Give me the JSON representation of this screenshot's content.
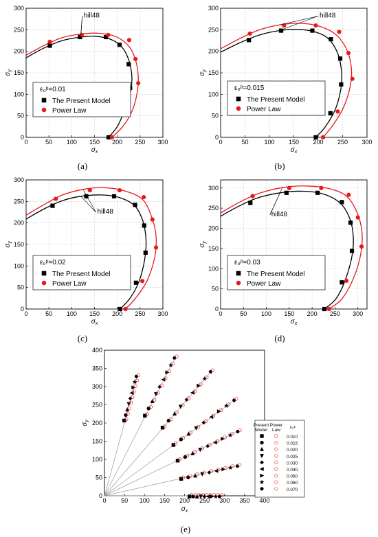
{
  "chart_data": [
    {
      "panel": "(a)",
      "type": "line",
      "xlabel": "σx",
      "ylabel": "σy",
      "xlim": [
        0,
        300
      ],
      "ylim": [
        0,
        300
      ],
      "xticks": [
        0,
        50,
        100,
        150,
        200,
        250,
        300
      ],
      "yticks": [
        0,
        50,
        100,
        150,
        200,
        250,
        300
      ],
      "grid": true,
      "legend_title": "ε₀ᵖ=0.01",
      "curve_label": "hill48",
      "series": [
        {
          "name": "The Present Model",
          "marker": "square",
          "color": "#000000",
          "points": [
            [
              52,
              213
            ],
            [
              118,
              233
            ],
            [
              175,
              233
            ],
            [
              205,
              215
            ],
            [
              225,
              170
            ],
            [
              228,
              115
            ],
            [
              212,
              53
            ],
            [
              181,
              0
            ]
          ]
        },
        {
          "name": "Power Law",
          "marker": "circle",
          "color": "#e8191c",
          "points": [
            [
              52,
              222
            ],
            [
              122,
              238
            ],
            [
              180,
              238
            ],
            [
              226,
              226
            ],
            [
              240,
              182
            ],
            [
              246,
              126
            ],
            [
              220,
              55
            ],
            [
              188,
              0
            ]
          ]
        }
      ],
      "curves": [
        {
          "color": "#000000",
          "points": [
            [
              0,
              185
            ],
            [
              40,
              208
            ],
            [
              80,
              225
            ],
            [
              120,
              233
            ],
            [
              150,
              235
            ],
            [
              185,
              228
            ],
            [
              210,
              210
            ],
            [
              225,
              180
            ],
            [
              232,
              140
            ],
            [
              228,
              100
            ],
            [
              215,
              60
            ],
            [
              200,
              25
            ],
            [
              181,
              0
            ]
          ]
        },
        {
          "color": "#e8191c",
          "points": [
            [
              0,
              191
            ],
            [
              40,
              214
            ],
            [
              80,
              232
            ],
            [
              120,
              240
            ],
            [
              155,
              242
            ],
            [
              195,
              235
            ],
            [
              225,
              212
            ],
            [
              240,
              180
            ],
            [
              246,
              140
            ],
            [
              243,
              100
            ],
            [
              232,
              60
            ],
            [
              212,
              25
            ],
            [
              188,
              0
            ]
          ]
        }
      ]
    },
    {
      "panel": "(b)",
      "type": "line",
      "xlabel": "σx",
      "ylabel": "σy",
      "xlim": [
        0,
        300
      ],
      "ylim": [
        0,
        300
      ],
      "xticks": [
        0,
        50,
        100,
        150,
        200,
        250,
        300
      ],
      "yticks": [
        0,
        50,
        100,
        150,
        200,
        250,
        300
      ],
      "grid": true,
      "legend_title": "ε₀ᵖ=0.015",
      "curve_label": "hill48",
      "series": [
        {
          "name": "The Present Model",
          "marker": "square",
          "color": "#000000",
          "points": [
            [
              58,
              226
            ],
            [
              124,
              248
            ],
            [
              188,
              248
            ],
            [
              226,
              228
            ],
            [
              245,
              183
            ],
            [
              247,
              123
            ],
            [
              225,
              56
            ],
            [
              195,
              0
            ]
          ]
        },
        {
          "name": "Power Law",
          "marker": "circle",
          "color": "#e8191c",
          "points": [
            [
              60,
              241
            ],
            [
              130,
              260
            ],
            [
              195,
              260
            ],
            [
              243,
              245
            ],
            [
              262,
              196
            ],
            [
              270,
              136
            ],
            [
              240,
              60
            ],
            [
              210,
              0
            ]
          ]
        }
      ],
      "curves": [
        {
          "color": "#000000",
          "points": [
            [
              0,
              198
            ],
            [
              40,
              220
            ],
            [
              80,
              238
            ],
            [
              120,
              248
            ],
            [
              155,
              251
            ],
            [
              190,
              246
            ],
            [
              220,
              230
            ],
            [
              240,
              195
            ],
            [
              248,
              150
            ],
            [
              246,
              110
            ],
            [
              235,
              65
            ],
            [
              215,
              25
            ],
            [
              195,
              0
            ]
          ]
        },
        {
          "color": "#e8191c",
          "points": [
            [
              0,
              206
            ],
            [
              40,
              230
            ],
            [
              80,
              250
            ],
            [
              120,
              261
            ],
            [
              160,
              265
            ],
            [
              200,
              259
            ],
            [
              235,
              240
            ],
            [
              258,
              205
            ],
            [
              268,
              160
            ],
            [
              265,
              115
            ],
            [
              250,
              65
            ],
            [
              228,
              25
            ],
            [
              210,
              0
            ]
          ]
        }
      ]
    },
    {
      "panel": "(c)",
      "type": "line",
      "xlabel": "σx",
      "ylabel": "σy",
      "xlim": [
        0,
        300
      ],
      "ylim": [
        0,
        300
      ],
      "xticks": [
        0,
        50,
        100,
        150,
        200,
        250,
        300
      ],
      "yticks": [
        0,
        50,
        100,
        150,
        200,
        250,
        300
      ],
      "grid": true,
      "legend_title": "ε₀ᵖ=0.02",
      "curve_label": "hill48",
      "series": [
        {
          "name": "The Present Model",
          "marker": "square",
          "color": "#000000",
          "points": [
            [
              58,
              240
            ],
            [
              132,
              262
            ],
            [
              193,
              262
            ],
            [
              239,
              242
            ],
            [
              259,
              194
            ],
            [
              262,
              131
            ],
            [
              241,
              61
            ],
            [
              206,
              0
            ]
          ]
        },
        {
          "name": "Power Law",
          "marker": "circle",
          "color": "#e8191c",
          "points": [
            [
              65,
              256
            ],
            [
              140,
              276
            ],
            [
              205,
              276
            ],
            [
              258,
              260
            ],
            [
              277,
              208
            ],
            [
              285,
              143
            ],
            [
              255,
              65
            ],
            [
              218,
              0
            ]
          ]
        }
      ],
      "curves": [
        {
          "color": "#000000",
          "points": [
            [
              0,
              209
            ],
            [
              40,
              233
            ],
            [
              80,
              252
            ],
            [
              120,
              262
            ],
            [
              165,
              265
            ],
            [
              205,
              259
            ],
            [
              238,
              240
            ],
            [
              256,
              205
            ],
            [
              263,
              160
            ],
            [
              260,
              115
            ],
            [
              248,
              65
            ],
            [
              228,
              25
            ],
            [
              206,
              0
            ]
          ]
        },
        {
          "color": "#e8191c",
          "points": [
            [
              0,
              218
            ],
            [
              40,
              243
            ],
            [
              80,
              265
            ],
            [
              125,
              278
            ],
            [
              170,
              282
            ],
            [
              215,
              275
            ],
            [
              255,
              255
            ],
            [
              275,
              215
            ],
            [
              285,
              170
            ],
            [
              282,
              120
            ],
            [
              265,
              65
            ],
            [
              240,
              25
            ],
            [
              218,
              0
            ]
          ]
        }
      ]
    },
    {
      "panel": "(d)",
      "type": "line",
      "xlabel": "σx",
      "ylabel": "σy",
      "xlim": [
        0,
        320
      ],
      "ylim": [
        0,
        320
      ],
      "xticks": [
        0,
        50,
        100,
        150,
        200,
        250,
        300
      ],
      "yticks": [
        0,
        50,
        100,
        150,
        200,
        250,
        300
      ],
      "grid": true,
      "legend_title": "ε₀ᵖ=0.03",
      "curve_label": "hill48",
      "series": [
        {
          "name": "The Present Model",
          "marker": "square",
          "color": "#000000",
          "points": [
            [
              65,
              263
            ],
            [
              144,
              288
            ],
            [
              212,
              288
            ],
            [
              265,
              265
            ],
            [
              284,
              214
            ],
            [
              287,
              144
            ],
            [
              265,
              66
            ],
            [
              227,
              0
            ]
          ]
        },
        {
          "name": "Power Law",
          "marker": "circle",
          "color": "#e8191c",
          "points": [
            [
              70,
              280
            ],
            [
              150,
              300
            ],
            [
              220,
              300
            ],
            [
              280,
              283
            ],
            [
              300,
              227
            ],
            [
              308,
              155
            ],
            [
              275,
              70
            ],
            [
              237,
              0
            ]
          ]
        }
      ],
      "curves": [
        {
          "color": "#000000",
          "points": [
            [
              0,
              230
            ],
            [
              40,
              255
            ],
            [
              80,
              275
            ],
            [
              130,
              288
            ],
            [
              180,
              292
            ],
            [
              225,
              285
            ],
            [
              262,
              262
            ],
            [
              282,
              225
            ],
            [
              290,
              180
            ],
            [
              287,
              130
            ],
            [
              272,
              70
            ],
            [
              252,
              25
            ],
            [
              227,
              0
            ]
          ]
        },
        {
          "color": "#e8191c",
          "points": [
            [
              0,
              238
            ],
            [
              40,
              264
            ],
            [
              85,
              287
            ],
            [
              135,
              301
            ],
            [
              185,
              305
            ],
            [
              235,
              299
            ],
            [
              275,
              280
            ],
            [
              298,
              240
            ],
            [
              309,
              190
            ],
            [
              306,
              135
            ],
            [
              290,
              75
            ],
            [
              265,
              25
            ],
            [
              237,
              0
            ]
          ]
        }
      ]
    },
    {
      "panel": "(e)",
      "type": "scatter",
      "xlabel": "σx",
      "ylabel": "σy",
      "xlim": [
        0,
        400
      ],
      "ylim": [
        0,
        400
      ],
      "xticks": [
        0,
        50,
        100,
        150,
        200,
        250,
        300,
        350,
        400
      ],
      "yticks": [
        0,
        50,
        100,
        150,
        200,
        250,
        300,
        350,
        400
      ],
      "grid": false,
      "legend_headers": [
        "Present Model",
        "Power Law",
        "ε₀ᵖ"
      ],
      "legend_levels": [
        "0.010",
        "0.015",
        "0.020",
        "0.025",
        "0.030",
        "0.040",
        "0.050",
        "0.060",
        "0.070"
      ],
      "present_marker_shapes": [
        "square",
        "circle",
        "triangle-up",
        "triangle-down",
        "diamond",
        "triangle-left",
        "triangle-right",
        "star",
        "hexagon"
      ],
      "rays": [
        {
          "angle_deg": 0,
          "start": 215,
          "end": 290
        },
        {
          "angle_deg": 14,
          "start": 200,
          "end": 345
        },
        {
          "angle_deg": 28,
          "start": 210,
          "end": 380
        },
        {
          "angle_deg": 39,
          "start": 225,
          "end": 420
        },
        {
          "angle_deg": 52,
          "start": 240,
          "end": 435
        },
        {
          "angle_deg": 65,
          "start": 245,
          "end": 420
        },
        {
          "angle_deg": 76,
          "start": 215,
          "end": 340
        }
      ]
    }
  ],
  "captions": [
    "(a)",
    "(b)",
    "(c)",
    "(d)",
    "(e)"
  ]
}
